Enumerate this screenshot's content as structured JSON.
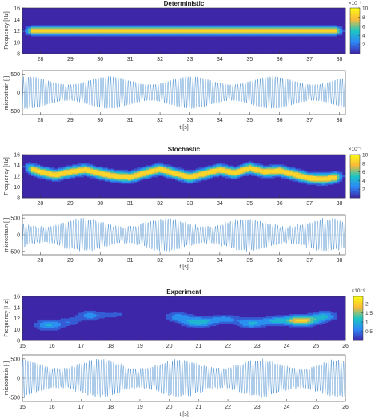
{
  "chart_data": [
    {
      "type": "heatmap",
      "title": "Deterministic",
      "ylabel": "Frequency [Hz]",
      "xlim": [
        27.4,
        38.2
      ],
      "ylim": [
        8,
        16
      ],
      "xticks": [
        28,
        29,
        30,
        31,
        32,
        33,
        34,
        35,
        36,
        37,
        38
      ],
      "yticks": [
        8,
        10,
        12,
        14,
        16
      ],
      "ridge": {
        "x": [
          27.4,
          38.2
        ],
        "y": [
          12,
          12
        ],
        "width": 0.7
      },
      "colorbar": {
        "min": 0,
        "max": 10,
        "ticks": [
          2,
          4,
          6,
          8,
          10
        ],
        "exponent": "×10⁻³"
      },
      "color_stops": [
        "#3e26a8",
        "#2e87f7",
        "#1ac7c2",
        "#fbba3a",
        "#f9fb15"
      ]
    },
    {
      "type": "line",
      "xlabel": "t [s]",
      "ylabel": "microstrain [-]",
      "xlim": [
        27.4,
        38.2
      ],
      "ylim": [
        -600,
        600
      ],
      "xticks": [
        28,
        29,
        30,
        31,
        32,
        33,
        34,
        35,
        36,
        37,
        38
      ],
      "yticks": [
        -500,
        0,
        500
      ],
      "signal": {
        "amplitude": 440,
        "frequency_hz": 12
      },
      "line_color": "#4a8fd0"
    },
    {
      "type": "heatmap",
      "title": "Stochastic",
      "ylabel": "Frequency [Hz]",
      "xlim": [
        27.4,
        38.2
      ],
      "ylim": [
        8,
        16
      ],
      "xticks": [
        28,
        29,
        30,
        31,
        32,
        33,
        34,
        35,
        36,
        37,
        38
      ],
      "yticks": [
        8,
        10,
        12,
        14,
        16
      ],
      "ridge": {
        "x": [
          27.4,
          28.0,
          28.5,
          29.0,
          29.5,
          30.0,
          30.5,
          31.0,
          31.5,
          32.0,
          32.5,
          33.0,
          33.5,
          34.0,
          34.5,
          35.0,
          35.5,
          36.0,
          36.5,
          37.0,
          37.5,
          38.2
        ],
        "y": [
          13.8,
          12.8,
          12.2,
          12.8,
          13.2,
          12.5,
          12.0,
          11.8,
          12.6,
          13.3,
          12.5,
          11.8,
          12.5,
          13.2,
          12.6,
          13.5,
          12.8,
          13.0,
          12.3,
          11.6,
          11.5,
          12.0
        ],
        "width": 0.9
      },
      "colorbar": {
        "min": 0,
        "max": 10,
        "ticks": [
          2,
          4,
          6,
          8,
          10
        ],
        "exponent": "×10⁻³"
      },
      "color_stops": [
        "#3e26a8",
        "#2e87f7",
        "#1ac7c2",
        "#fbba3a",
        "#f9fb15"
      ]
    },
    {
      "type": "line",
      "xlabel": "t [s]",
      "ylabel": "microstrain [-]",
      "xlim": [
        27.4,
        38.2
      ],
      "ylim": [
        -600,
        600
      ],
      "xticks": [
        28,
        29,
        30,
        31,
        32,
        33,
        34,
        35,
        36,
        37,
        38
      ],
      "yticks": [
        -500,
        0,
        500
      ],
      "signal": {
        "amplitude": 480,
        "frequency_hz": 12
      },
      "line_color": "#4a8fd0"
    },
    {
      "type": "heatmap",
      "title": "Experiment",
      "ylabel": "Frequency [Hz]",
      "xlim": [
        15,
        26
      ],
      "ylim": [
        8,
        16
      ],
      "xticks": [
        15,
        16,
        17,
        18,
        19,
        20,
        21,
        22,
        23,
        24,
        25,
        26
      ],
      "yticks": [
        8,
        10,
        12,
        14,
        16
      ],
      "blobs": [
        {
          "t": 15.9,
          "f": 10.8,
          "sx": 0.45,
          "sy": 1.0,
          "a": 0.45
        },
        {
          "t": 16.6,
          "f": 11.4,
          "sx": 0.35,
          "sy": 0.8,
          "a": 0.25
        },
        {
          "t": 17.3,
          "f": 12.5,
          "sx": 0.45,
          "sy": 0.9,
          "a": 0.35
        },
        {
          "t": 18.2,
          "f": 12.7,
          "sx": 0.5,
          "sy": 0.8,
          "a": 0.18
        },
        {
          "t": 19.2,
          "f": 13.0,
          "sx": 0.35,
          "sy": 0.7,
          "a": 0.12
        },
        {
          "t": 20.3,
          "f": 12.3,
          "sx": 0.45,
          "sy": 0.9,
          "a": 0.35
        },
        {
          "t": 21.0,
          "f": 11.3,
          "sx": 0.55,
          "sy": 0.9,
          "a": 0.55
        },
        {
          "t": 21.9,
          "f": 11.9,
          "sx": 0.5,
          "sy": 0.8,
          "a": 0.35
        },
        {
          "t": 22.8,
          "f": 11.1,
          "sx": 0.5,
          "sy": 0.9,
          "a": 0.45
        },
        {
          "t": 23.6,
          "f": 11.6,
          "sx": 0.45,
          "sy": 0.8,
          "a": 0.4
        },
        {
          "t": 24.5,
          "f": 11.6,
          "sx": 0.55,
          "sy": 0.9,
          "a": 0.95
        },
        {
          "t": 25.3,
          "f": 12.4,
          "sx": 0.4,
          "sy": 0.9,
          "a": 0.45
        }
      ],
      "colorbar": {
        "min": 0,
        "max": 2.4,
        "ticks": [
          0.5,
          1,
          1.5,
          2
        ],
        "exponent": "×10⁻⁶"
      },
      "color_stops": [
        "#3e26a8",
        "#2e87f7",
        "#1ac7c2",
        "#fbba3a",
        "#f9fb15"
      ]
    },
    {
      "type": "line",
      "xlabel": "t [s]",
      "ylabel": "microstrain [-]",
      "xlim": [
        15,
        26
      ],
      "ylim": [
        -600,
        600
      ],
      "xticks": [
        15,
        16,
        17,
        18,
        19,
        20,
        21,
        22,
        23,
        24,
        25,
        26
      ],
      "yticks": [
        -500,
        0,
        500
      ],
      "signal": {
        "amplitude": 480,
        "frequency_hz": 12
      },
      "line_color": "#4a8fd0"
    }
  ]
}
